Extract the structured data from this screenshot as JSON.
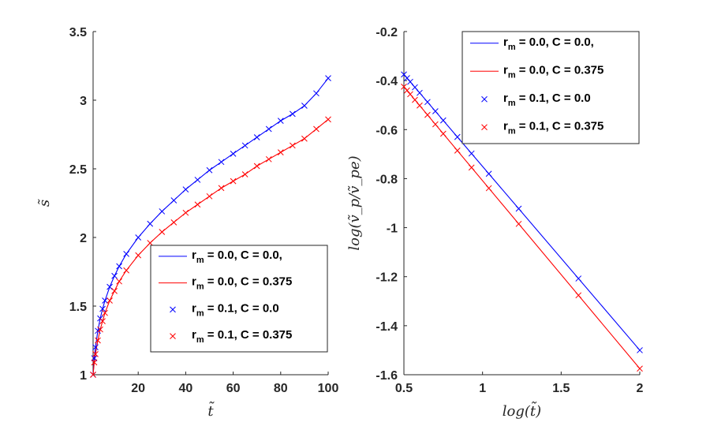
{
  "chart_data": [
    {
      "type": "line",
      "xlabel": "t̃",
      "ylabel": "s̃",
      "xlim": [
        1,
        100
      ],
      "ylim": [
        1,
        3.5
      ],
      "xticks": [
        "20",
        "40",
        "60",
        "80",
        "100"
      ],
      "xtick_values": [
        20,
        40,
        60,
        80,
        100
      ],
      "yticks": [
        "1",
        "1.5",
        "2",
        "2.5",
        "3",
        "3.5"
      ],
      "ytick_values": [
        1,
        1.5,
        2,
        2.5,
        3,
        3.5
      ],
      "grid": false,
      "legend_position": "lower-right",
      "series": [
        {
          "name": "r_m = 0.0, C = 0.0,",
          "style": "line",
          "color": "#0000ff",
          "x": [
            1,
            1.5,
            2,
            3,
            4,
            5,
            6,
            8,
            10,
            12,
            15,
            20,
            25,
            30,
            35,
            40,
            45,
            50,
            55,
            60,
            65,
            70,
            75,
            80,
            85,
            90,
            95,
            100
          ],
          "y": [
            1.0,
            1.12,
            1.2,
            1.32,
            1.41,
            1.48,
            1.54,
            1.64,
            1.72,
            1.79,
            1.88,
            2.0,
            2.1,
            2.19,
            2.27,
            2.35,
            2.42,
            2.49,
            2.55,
            2.61,
            2.67,
            2.73,
            2.79,
            2.85,
            2.9,
            2.96,
            3.05,
            3.16
          ]
        },
        {
          "name": "r_m = 0.0, C = 0.375",
          "style": "line",
          "color": "#ff0000",
          "x": [
            1,
            1.5,
            2,
            3,
            4,
            5,
            6,
            8,
            10,
            12,
            15,
            20,
            25,
            30,
            35,
            40,
            45,
            50,
            55,
            60,
            65,
            70,
            75,
            80,
            85,
            90,
            95,
            100
          ],
          "y": [
            1.0,
            1.09,
            1.15,
            1.25,
            1.33,
            1.39,
            1.45,
            1.54,
            1.61,
            1.68,
            1.76,
            1.87,
            1.96,
            2.04,
            2.11,
            2.18,
            2.24,
            2.3,
            2.36,
            2.41,
            2.46,
            2.52,
            2.57,
            2.62,
            2.67,
            2.72,
            2.79,
            2.86
          ]
        },
        {
          "name": "r_m = 0.1, C = 0.0",
          "style": "marker-x",
          "color": "#0000ff",
          "x": [
            1,
            1.5,
            2,
            3,
            4,
            5,
            6,
            8,
            10,
            12,
            15,
            20,
            25,
            30,
            35,
            40,
            45,
            50,
            55,
            60,
            65,
            70,
            75,
            80,
            85,
            90,
            95,
            100
          ],
          "y": [
            1.0,
            1.12,
            1.2,
            1.32,
            1.41,
            1.48,
            1.54,
            1.64,
            1.72,
            1.79,
            1.88,
            2.0,
            2.1,
            2.19,
            2.27,
            2.35,
            2.42,
            2.49,
            2.55,
            2.61,
            2.67,
            2.73,
            2.79,
            2.85,
            2.9,
            2.96,
            3.05,
            3.16
          ]
        },
        {
          "name": "r_m = 0.1, C = 0.375",
          "style": "marker-x",
          "color": "#ff0000",
          "x": [
            1,
            1.5,
            2,
            3,
            4,
            5,
            6,
            8,
            10,
            12,
            15,
            20,
            25,
            30,
            35,
            40,
            45,
            50,
            55,
            60,
            65,
            70,
            75,
            80,
            85,
            90,
            95,
            100
          ],
          "y": [
            1.0,
            1.09,
            1.15,
            1.25,
            1.33,
            1.39,
            1.45,
            1.54,
            1.61,
            1.68,
            1.76,
            1.87,
            1.96,
            2.04,
            2.11,
            2.18,
            2.24,
            2.3,
            2.36,
            2.41,
            2.46,
            2.52,
            2.57,
            2.62,
            2.67,
            2.72,
            2.79,
            2.86
          ]
        }
      ]
    },
    {
      "type": "line",
      "xlabel": "log(t̃)",
      "ylabel": "log(ṽ_p/ṽ_pe)",
      "xlim": [
        0.5,
        2
      ],
      "ylim": [
        -1.6,
        -0.2
      ],
      "xticks": [
        "0.5",
        "1",
        "1.5",
        "2"
      ],
      "xtick_values": [
        0.5,
        1,
        1.5,
        2
      ],
      "yticks": [
        "-0.2",
        "-0.4",
        "-0.6",
        "-0.8",
        "-1",
        "-1.2",
        "-1.4",
        "-1.6"
      ],
      "ytick_values": [
        -0.2,
        -0.4,
        -0.6,
        -0.8,
        -1,
        -1.2,
        -1.4,
        -1.6
      ],
      "grid": false,
      "legend_position": "top-right",
      "series": [
        {
          "name": "r_m = 0.0, C = 0.0,",
          "style": "line",
          "color": "#0000ff",
          "x": [
            0.5,
            2.0
          ],
          "y": [
            -0.375,
            -1.5
          ]
        },
        {
          "name": "r_m = 0.0, C = 0.375",
          "style": "line",
          "color": "#ff0000",
          "x": [
            0.5,
            2.0
          ],
          "y": [
            -0.425,
            -1.575
          ]
        },
        {
          "name": "r_m = 0.1, C = 0.0",
          "style": "marker-x",
          "color": "#0000ff",
          "x": [
            0.5,
            0.52,
            0.54,
            0.57,
            0.6,
            0.65,
            0.7,
            0.75,
            0.84,
            0.93,
            1.04,
            1.23,
            1.61,
            2.0
          ],
          "y": [
            -0.375,
            -0.39,
            -0.405,
            -0.4275,
            -0.45,
            -0.4875,
            -0.525,
            -0.5625,
            -0.63,
            -0.6975,
            -0.78,
            -0.9225,
            -1.2075,
            -1.5
          ]
        },
        {
          "name": "r_m = 0.1, C = 0.375",
          "style": "marker-x",
          "color": "#ff0000",
          "x": [
            0.5,
            0.52,
            0.54,
            0.57,
            0.6,
            0.65,
            0.7,
            0.75,
            0.84,
            0.93,
            1.04,
            1.23,
            1.61,
            2.0
          ],
          "y": [
            -0.425,
            -0.4403,
            -0.4557,
            -0.4787,
            -0.5017,
            -0.54,
            -0.5783,
            -0.6167,
            -0.6857,
            -0.7547,
            -0.839,
            -0.9847,
            -1.276,
            -1.575
          ]
        }
      ]
    }
  ]
}
